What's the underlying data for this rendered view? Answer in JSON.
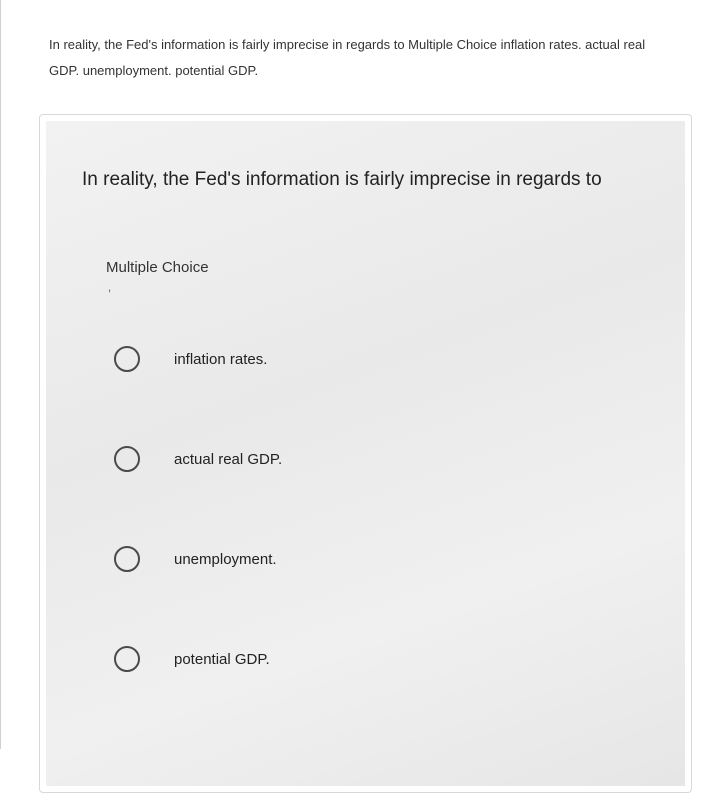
{
  "topText": "In reality, the Fed's information is fairly imprecise in regards to Multiple Choice inflation rates. actual real GDP. unemployment. potential GDP.",
  "card": {
    "question": "In reality, the Fed's information is fairly imprecise in regards to",
    "sectionLabel": "Multiple Choice",
    "options": [
      {
        "label": "inflation rates."
      },
      {
        "label": "actual real GDP."
      },
      {
        "label": "unemployment."
      },
      {
        "label": "potential GDP."
      }
    ]
  },
  "colors": {
    "border": "#d8d8d8",
    "radioBorder": "#4a4a4a",
    "textPrimary": "#222222",
    "textSecondary": "#333333",
    "cardBgStart": "#f2f2f2",
    "cardBgEnd": "#e6e6e6"
  }
}
